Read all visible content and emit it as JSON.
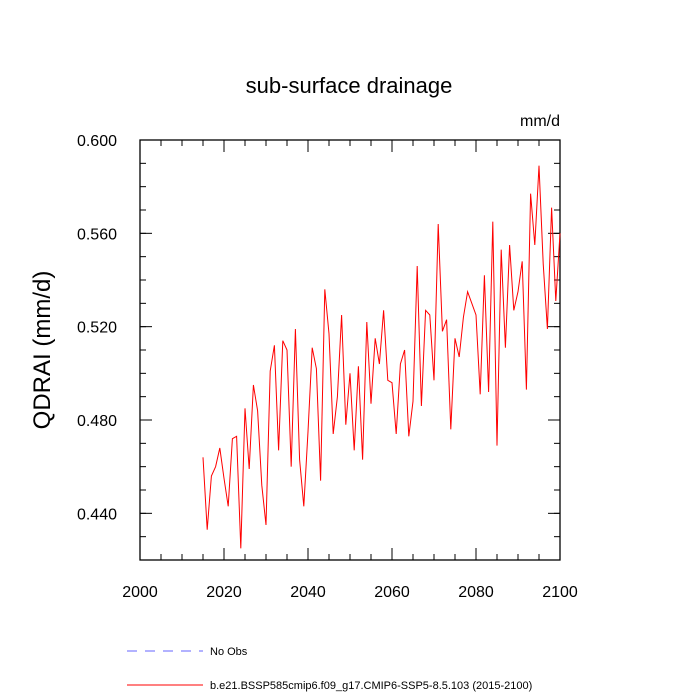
{
  "chart_data": {
    "type": "line",
    "title": "sub-surface drainage",
    "units": "mm/d",
    "ylabel": "QDRAI  (mm/d)",
    "xlabel": "",
    "xlim": [
      2000,
      2100
    ],
    "ylim": [
      0.42,
      0.6
    ],
    "xticks": [
      2000,
      2020,
      2040,
      2060,
      2080,
      2100
    ],
    "yticks": [
      0.44,
      0.48,
      0.52,
      0.56,
      0.6
    ],
    "ytick_labels": [
      "0.440",
      "0.480",
      "0.520",
      "0.560",
      "0.600"
    ],
    "legend": [
      {
        "label": "No Obs",
        "color": "#6666ff",
        "style": "dashed"
      },
      {
        "label": "b.e21.BSSP585cmip6.f09_g17.CMIP6-SSP5-8.5.103 (2015-2100)",
        "color": "#ff0000",
        "style": "solid"
      }
    ],
    "series": [
      {
        "name": "b.e21.BSSP585cmip6.f09_g17.CMIP6-SSP5-8.5.103 (2015-2100)",
        "color": "#ff0000",
        "x": [
          2015,
          2016,
          2017,
          2018,
          2019,
          2020,
          2021,
          2022,
          2023,
          2024,
          2025,
          2026,
          2027,
          2028,
          2029,
          2030,
          2031,
          2032,
          2033,
          2034,
          2035,
          2036,
          2037,
          2038,
          2039,
          2040,
          2041,
          2042,
          2043,
          2044,
          2045,
          2046,
          2047,
          2048,
          2049,
          2050,
          2051,
          2052,
          2053,
          2054,
          2055,
          2056,
          2057,
          2058,
          2059,
          2060,
          2061,
          2062,
          2063,
          2064,
          2065,
          2066,
          2067,
          2068,
          2069,
          2070,
          2071,
          2072,
          2073,
          2074,
          2075,
          2076,
          2077,
          2078,
          2079,
          2080,
          2081,
          2082,
          2083,
          2084,
          2085,
          2086,
          2087,
          2088,
          2089,
          2090,
          2091,
          2092,
          2093,
          2094,
          2095,
          2096,
          2097,
          2098,
          2099,
          2100
        ],
        "values": [
          0.464,
          0.433,
          0.456,
          0.46,
          0.468,
          0.455,
          0.443,
          0.472,
          0.473,
          0.425,
          0.485,
          0.459,
          0.495,
          0.484,
          0.452,
          0.435,
          0.501,
          0.512,
          0.467,
          0.514,
          0.51,
          0.46,
          0.519,
          0.463,
          0.443,
          0.475,
          0.511,
          0.502,
          0.454,
          0.536,
          0.517,
          0.474,
          0.49,
          0.525,
          0.478,
          0.5,
          0.467,
          0.503,
          0.463,
          0.522,
          0.487,
          0.515,
          0.504,
          0.527,
          0.497,
          0.496,
          0.474,
          0.504,
          0.51,
          0.473,
          0.488,
          0.546,
          0.486,
          0.527,
          0.525,
          0.497,
          0.564,
          0.518,
          0.523,
          0.476,
          0.515,
          0.507,
          0.524,
          0.535,
          0.53,
          0.525,
          0.491,
          0.542,
          0.492,
          0.565,
          0.469,
          0.553,
          0.511,
          0.555,
          0.527,
          0.535,
          0.548,
          0.493,
          0.577,
          0.555,
          0.589,
          0.547,
          0.519,
          0.571,
          0.531,
          0.56
        ]
      }
    ]
  }
}
